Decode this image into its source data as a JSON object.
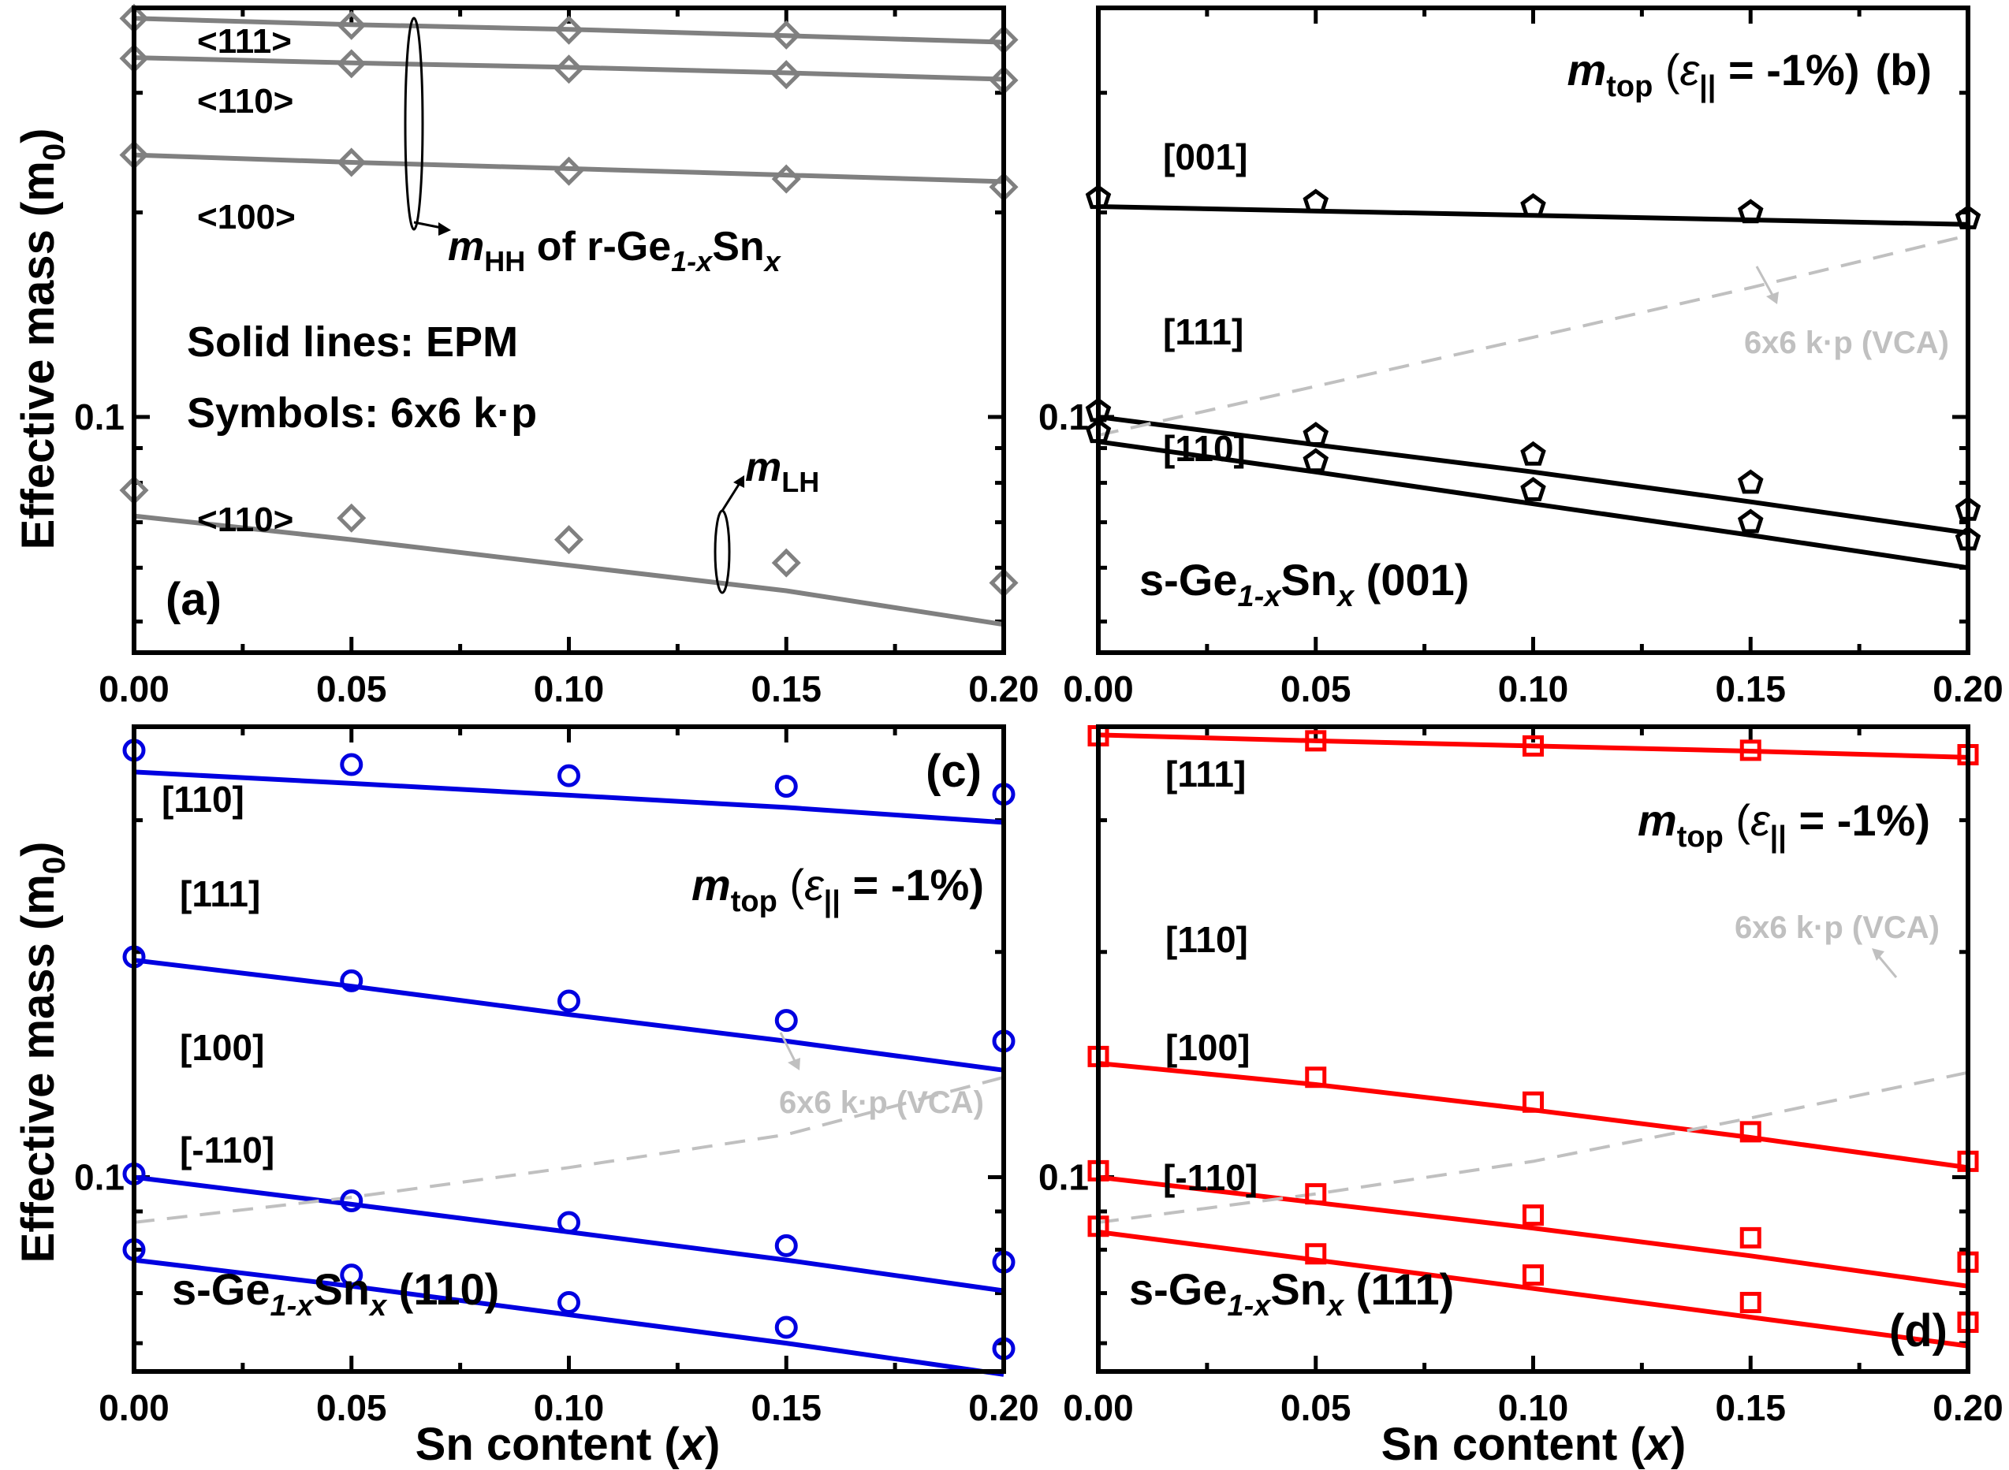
{
  "figure": {
    "ylabel": "Effective mass (m",
    "ylabel_sub": "0",
    "ylabel_close": ")",
    "xlabel": "Sn content (",
    "xlabel_var": "x",
    "xlabel_close": ")"
  },
  "chart_data": [
    {
      "type": "line",
      "panel": "a",
      "panel_label": "(a)",
      "xlim": [
        0,
        0.2
      ],
      "ylim": [
        0.045,
        0.4
      ],
      "yscale": "log",
      "xticks": [
        "0.00",
        "0.05",
        "0.10",
        "0.15",
        "0.20"
      ],
      "ytick_label": "0.1",
      "x": [
        0,
        0.05,
        0.1,
        0.15,
        0.2
      ],
      "series": [
        {
          "name": "<111>",
          "color": "#808080",
          "line": [
            0.386,
            0.378,
            0.372,
            0.364,
            0.356
          ],
          "marker": "diamond",
          "symbols": [
            0.386,
            0.377,
            0.371,
            0.365,
            0.359
          ]
        },
        {
          "name": "<110>",
          "color": "#808080",
          "line": [
            0.338,
            0.332,
            0.327,
            0.321,
            0.314
          ],
          "marker": "diamond",
          "symbols": [
            0.337,
            0.331,
            0.325,
            0.319,
            0.313
          ]
        },
        {
          "name": "<100>",
          "color": "#808080",
          "line": [
            0.243,
            0.237,
            0.232,
            0.227,
            0.222
          ],
          "marker": "diamond",
          "symbols": [
            0.243,
            0.237,
            0.23,
            0.224,
            0.218
          ]
        },
        {
          "name": "<110>",
          "color": "#808080",
          "line": [
            0.0715,
            0.066,
            0.0605,
            0.0555,
            0.0495
          ],
          "marker": "diamond",
          "symbols": [
            0.078,
            0.071,
            0.066,
            0.061,
            0.057
          ]
        }
      ],
      "annotations": {
        "legend_line1": "Solid lines: EPM",
        "legend_line2": "Symbols: 6x6 k·p",
        "hh_m": "m",
        "hh_sub": "HH",
        "hh_text": " of r-Ge",
        "hh_sub2": "1-x",
        "hh_sn": "Sn",
        "hh_x": "x",
        "lh_m": "m",
        "lh_sub": "LH"
      }
    },
    {
      "type": "line",
      "panel": "b",
      "panel_label": "(b)",
      "xlim": [
        0,
        0.2
      ],
      "ylim": [
        0.045,
        0.4
      ],
      "yscale": "log",
      "xticks": [
        "0.00",
        "0.05",
        "0.10",
        "0.15",
        "0.20"
      ],
      "ytick_label": "0.1",
      "x": [
        0,
        0.05,
        0.1,
        0.15,
        0.2
      ],
      "series": [
        {
          "name": "[001]",
          "color": "#000000",
          "line": [
            0.204,
            0.201,
            0.198,
            0.195,
            0.192
          ],
          "marker": "pentagon",
          "symbols": [
            0.21,
            0.207,
            0.204,
            0.2,
            0.196
          ]
        },
        {
          "name": "[111]",
          "color": "#000000",
          "line": [
            0.1,
            0.091,
            0.083,
            0.075,
            0.0675
          ],
          "marker": "pentagon",
          "symbols": [
            0.102,
            0.094,
            0.088,
            0.08,
            0.073
          ]
        },
        {
          "name": "[110]",
          "color": "#000000",
          "line": [
            0.092,
            0.083,
            0.0745,
            0.067,
            0.06
          ],
          "marker": "pentagon",
          "symbols": [
            0.095,
            0.086,
            0.078,
            0.07,
            0.066
          ]
        },
        {
          "name": "6x6 k·p (VCA)",
          "color": "#c0c0c0",
          "dashed": true,
          "line": [
            0.094,
            0.111,
            0.131,
            0.155,
            0.185
          ]
        }
      ],
      "annotations": {
        "title_m": "m",
        "title_sub": "top",
        "title_open": " (",
        "title_eps": "ε",
        "title_eps_sub": "||",
        "title_rest": " = -1%)",
        "title_panel": "(b)",
        "material_pre": "s-Ge",
        "material_sub": "1-x",
        "material_sn": "Sn",
        "material_x": "x",
        "material_post": " (001)"
      }
    },
    {
      "type": "line",
      "panel": "c",
      "panel_label": "(c)",
      "xlim": [
        0,
        0.2
      ],
      "ylim": [
        0.055,
        0.4
      ],
      "yscale": "log",
      "xticks": [
        "0.00",
        "0.05",
        "0.10",
        "0.15",
        "0.20"
      ],
      "ytick_label": "0.1",
      "x": [
        0,
        0.05,
        0.1,
        0.15,
        0.2
      ],
      "series": [
        {
          "name": "[110]",
          "color": "#0000e0",
          "line": [
            0.348,
            0.336,
            0.324,
            0.312,
            0.298
          ],
          "marker": "circle",
          "symbols": [
            0.372,
            0.356,
            0.344,
            0.333,
            0.325
          ]
        },
        {
          "name": "[111]",
          "color": "#0000e0",
          "line": [
            0.195,
            0.18,
            0.165,
            0.152,
            0.139
          ],
          "marker": "circle",
          "symbols": [
            0.197,
            0.183,
            0.172,
            0.162,
            0.152
          ]
        },
        {
          "name": "[100]",
          "color": "#0000e0",
          "line": [
            0.1,
            0.092,
            0.0845,
            0.0775,
            0.0705
          ],
          "marker": "circle",
          "symbols": [
            0.101,
            0.093,
            0.087,
            0.081,
            0.077
          ]
        },
        {
          "name": "[-110]",
          "color": "#0000e0",
          "line": [
            0.0775,
            0.0715,
            0.0655,
            0.06,
            0.0545
          ],
          "marker": "circle",
          "symbols": [
            0.08,
            0.074,
            0.068,
            0.063,
            0.059
          ]
        },
        {
          "name": "6x6 k·p (VCA)",
          "color": "#c0c0c0",
          "dashed": true,
          "line": [
            0.087,
            0.094,
            0.103,
            0.114,
            0.136
          ]
        }
      ],
      "annotations": {
        "title_m": "m",
        "title_sub": "top",
        "title_open": " (",
        "title_eps": "ε",
        "title_eps_sub": "||",
        "title_rest": " = -1%)",
        "material_pre": "s-Ge",
        "material_sub": "1-x",
        "material_sn": "Sn",
        "material_x": "x",
        "material_post": " (110)"
      }
    },
    {
      "type": "line",
      "panel": "d",
      "panel_label": "(d)",
      "xlim": [
        0,
        0.2
      ],
      "ylim": [
        0.055,
        0.4
      ],
      "yscale": "log",
      "xticks": [
        "0.00",
        "0.05",
        "0.10",
        "0.15",
        "0.20"
      ],
      "ytick_label": "0.1",
      "x": [
        0,
        0.05,
        0.1,
        0.15,
        0.2
      ],
      "series": [
        {
          "name": "[111]",
          "color": "#ff0000",
          "line": [
            0.39,
            0.383,
            0.377,
            0.371,
            0.364
          ],
          "marker": "square",
          "symbols": [
            0.389,
            0.383,
            0.377,
            0.372,
            0.367
          ]
        },
        {
          "name": "[110]",
          "color": "#ff0000",
          "line": [
            0.142,
            0.133,
            0.123,
            0.113,
            0.103
          ],
          "marker": "square",
          "symbols": [
            0.145,
            0.136,
            0.126,
            0.115,
            0.105
          ]
        },
        {
          "name": "[100]",
          "color": "#ff0000",
          "line": [
            0.1,
            0.0925,
            0.0855,
            0.0785,
            0.0715
          ],
          "marker": "square",
          "symbols": [
            0.102,
            0.095,
            0.089,
            0.083,
            0.077
          ]
        },
        {
          "name": "[-110]",
          "color": "#ff0000",
          "line": [
            0.0845,
            0.0775,
            0.071,
            0.065,
            0.0595
          ],
          "marker": "square",
          "symbols": [
            0.086,
            0.079,
            0.074,
            0.068,
            0.064
          ]
        },
        {
          "name": "6x6 k·p (VCA)",
          "color": "#c0c0c0",
          "dashed": true,
          "line": [
            0.087,
            0.095,
            0.105,
            0.12,
            0.138
          ]
        }
      ],
      "annotations": {
        "title_m": "m",
        "title_sub": "top",
        "title_open": " (",
        "title_eps": "ε",
        "title_eps_sub": "||",
        "title_rest": " = -1%)",
        "material_pre": "s-Ge",
        "material_sub": "1-x",
        "material_sn": "Sn",
        "material_x": "x",
        "material_post": " (111)"
      }
    }
  ]
}
